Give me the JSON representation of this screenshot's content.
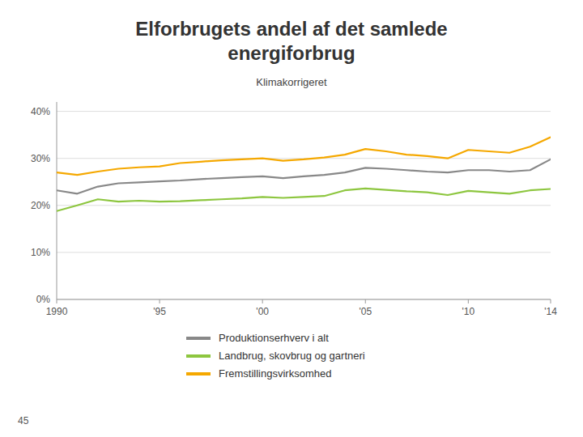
{
  "chart_data": {
    "type": "line",
    "title": "Elforbrugets andel af det samlede energiforbrug",
    "subtitle": "Klimakorrigeret",
    "annotations": [
      "45"
    ],
    "x": [
      1990,
      1991,
      1992,
      1993,
      1994,
      1995,
      1996,
      1997,
      1998,
      1999,
      2000,
      2001,
      2002,
      2003,
      2004,
      2005,
      2006,
      2007,
      2008,
      2009,
      2010,
      2011,
      2012,
      2013,
      2014
    ],
    "series": [
      {
        "name": "Produktionserhverv i alt",
        "color": "#888888",
        "values": [
          0.232,
          0.225,
          0.24,
          0.247,
          0.249,
          0.251,
          0.253,
          0.256,
          0.258,
          0.26,
          0.262,
          0.258,
          0.262,
          0.265,
          0.27,
          0.28,
          0.278,
          0.275,
          0.272,
          0.27,
          0.275,
          0.275,
          0.272,
          0.275,
          0.298
        ]
      },
      {
        "name": "Landbrug, skovbrug og gartneri",
        "color": "#8dc63f",
        "values": [
          0.188,
          0.2,
          0.213,
          0.208,
          0.21,
          0.208,
          0.209,
          0.211,
          0.213,
          0.215,
          0.218,
          0.216,
          0.218,
          0.22,
          0.232,
          0.236,
          0.233,
          0.23,
          0.228,
          0.222,
          0.231,
          0.228,
          0.225,
          0.232,
          0.235
        ]
      },
      {
        "name": "Fremstillingsvirksomhed",
        "color": "#f5a800",
        "values": [
          0.27,
          0.265,
          0.272,
          0.278,
          0.281,
          0.283,
          0.29,
          0.293,
          0.296,
          0.298,
          0.3,
          0.295,
          0.298,
          0.302,
          0.308,
          0.32,
          0.315,
          0.308,
          0.305,
          0.3,
          0.318,
          0.315,
          0.312,
          0.325,
          0.345
        ]
      }
    ],
    "xlim": [
      1990,
      2014
    ],
    "xticks": [
      1990,
      {
        "value": 1995,
        "label": "'95"
      },
      {
        "value": 2000,
        "label": "'00"
      },
      {
        "value": 2005,
        "label": "'05"
      },
      {
        "value": 2010,
        "label": "'10"
      },
      {
        "value": 2014,
        "label": "'14"
      }
    ],
    "ylim": [
      0,
      0.42
    ],
    "yticks": [
      {
        "value": 0.0,
        "label": "0%"
      },
      {
        "value": 0.1,
        "label": "10%"
      },
      {
        "value": 0.2,
        "label": "20%"
      },
      {
        "value": 0.3,
        "label": "30%"
      },
      {
        "value": 0.4,
        "label": "40%"
      }
    ],
    "grid": true,
    "legend": "bottom"
  }
}
